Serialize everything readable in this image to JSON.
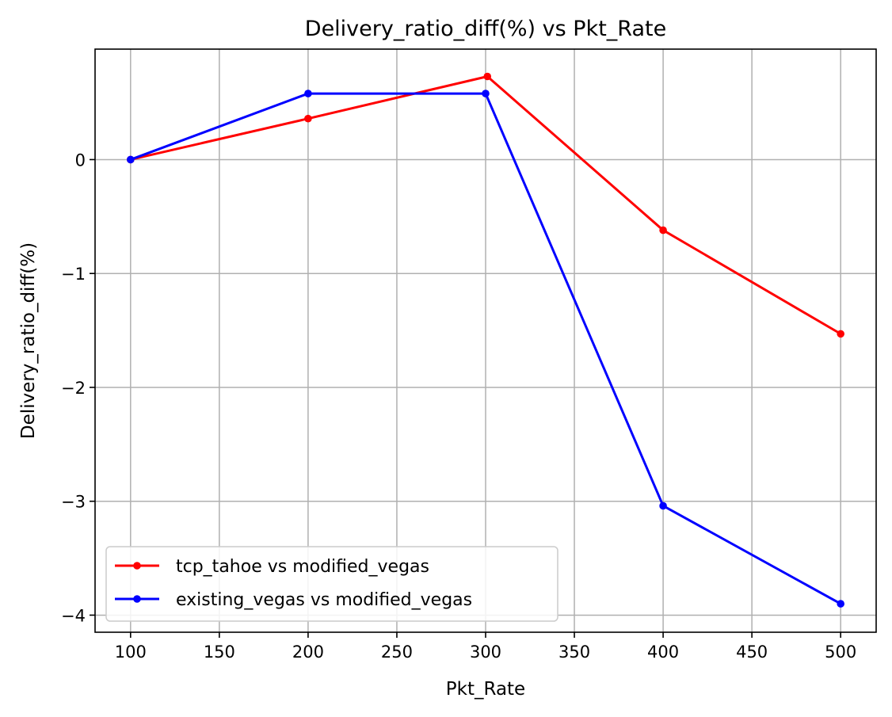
{
  "chart_data": {
    "type": "line",
    "title": "Delivery_ratio_diff(%) vs Pkt_Rate",
    "xlabel": "Pkt_Rate",
    "ylabel": "Delivery_ratio_diff(%)",
    "xlim": [
      80,
      520
    ],
    "ylim": [
      -4.15,
      0.97
    ],
    "xticks": [
      100,
      150,
      200,
      250,
      300,
      350,
      400,
      450,
      500
    ],
    "yticks": [
      0,
      -1,
      -2,
      -3,
      -4
    ],
    "ytick_labels": [
      "0",
      "−1",
      "−2",
      "−3",
      "−4"
    ],
    "grid": true,
    "legend_position": "lower-left",
    "series": [
      {
        "name": "tcp_tahoe vs modified_vegas",
        "color": "#ff0000",
        "marker": "circle",
        "x": [
          100,
          200,
          301,
          400,
          500
        ],
        "y": [
          0.0,
          0.36,
          0.73,
          -0.62,
          -1.53
        ]
      },
      {
        "name": "existing_vegas vs modified_vegas",
        "color": "#0000ff",
        "marker": "circle",
        "x": [
          100,
          200,
          300,
          400,
          500
        ],
        "y": [
          0.0,
          0.58,
          0.58,
          -3.04,
          -3.9
        ]
      }
    ]
  }
}
